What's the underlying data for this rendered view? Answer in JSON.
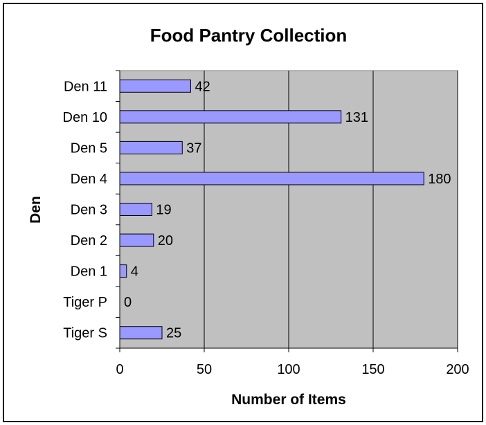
{
  "chart_data": {
    "type": "bar",
    "orientation": "horizontal",
    "title": "Food Pantry Collection",
    "xlabel": "Number of Items",
    "ylabel": "Den",
    "categories": [
      "Den 11",
      "Den 10",
      "Den 5",
      "Den 4",
      "Den 3",
      "Den 2",
      "Den 1",
      "Tiger P",
      "Tiger S"
    ],
    "values": [
      42,
      131,
      37,
      180,
      19,
      20,
      4,
      0,
      25
    ],
    "xlim": [
      0,
      200
    ],
    "xticks": [
      "0",
      "50",
      "100",
      "150",
      "200"
    ],
    "grid": "vertical",
    "legend": "none",
    "colors": {
      "plot_background": "#c0c0c0",
      "bar_fill": "#9999ff",
      "bar_stroke": "#000000",
      "gridline": "#000000"
    }
  }
}
